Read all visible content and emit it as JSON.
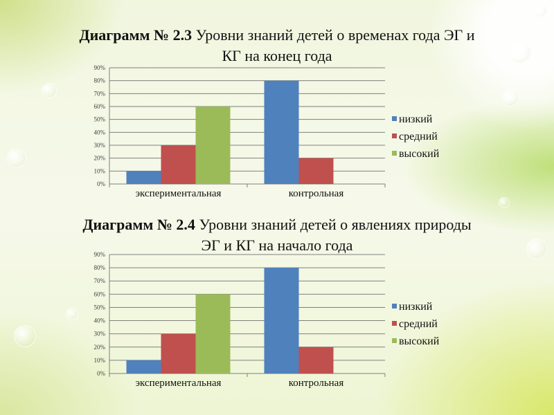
{
  "titles": [
    {
      "bold": "Диаграмм № 2.3",
      "rest_line1": " Уровни знаний детей о временах года ЭГ и",
      "line2": "КГ на конец года"
    },
    {
      "bold": "Диаграмм № 2.4",
      "rest_line1": " Уровни знаний детей о явлениях природы",
      "line2": "ЭГ и КГ на начало года"
    }
  ],
  "colors": {
    "низкий": "#4f81bd",
    "средний": "#c0504d",
    "высокий": "#9bbb59"
  },
  "chart_data": [
    {
      "type": "bar",
      "categories": [
        "экспериментальная",
        "контрольная"
      ],
      "series": [
        {
          "name": "низкий",
          "values": [
            10,
            80
          ]
        },
        {
          "name": "средний",
          "values": [
            30,
            20
          ]
        },
        {
          "name": "высокий",
          "values": [
            60,
            0
          ]
        }
      ],
      "ylim": [
        0,
        90
      ],
      "yticks": [
        "0%",
        "10%",
        "20%",
        "30%",
        "40%",
        "50%",
        "60%",
        "70%",
        "80%",
        "90%"
      ],
      "legend": "right",
      "grid": true
    },
    {
      "type": "bar",
      "categories": [
        "экспериментальная",
        "контрольная"
      ],
      "series": [
        {
          "name": "низкий",
          "values": [
            10,
            80
          ]
        },
        {
          "name": "средний",
          "values": [
            30,
            20
          ]
        },
        {
          "name": "высокий",
          "values": [
            60,
            0
          ]
        }
      ],
      "ylim": [
        0,
        90
      ],
      "yticks": [
        "0%",
        "10%",
        "20%",
        "30%",
        "40%",
        "50%",
        "60%",
        "70%",
        "80%",
        "90%"
      ],
      "legend": "right",
      "grid": true
    }
  ]
}
